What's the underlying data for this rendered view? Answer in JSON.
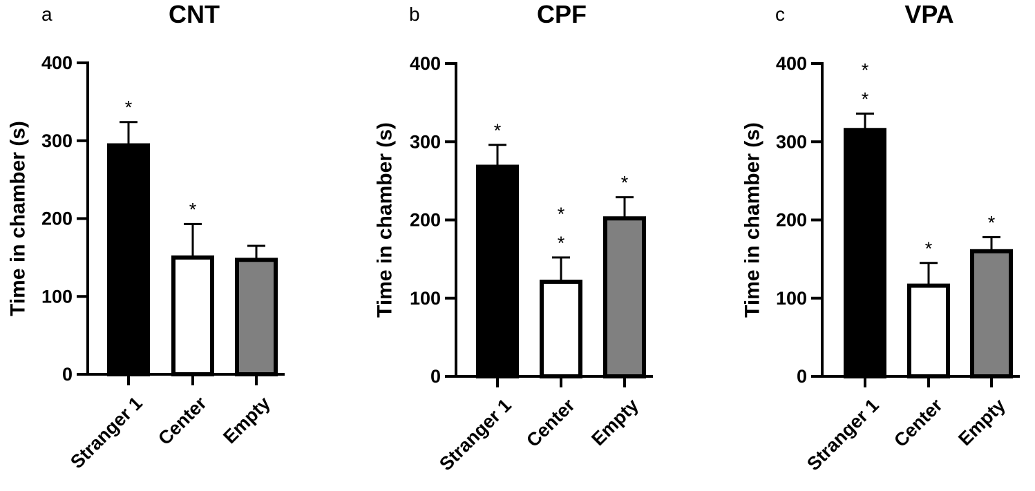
{
  "chart_data": [
    {
      "type": "bar",
      "panel_label": "a",
      "title": "CNT",
      "ylabel": "Time in chamber (s)",
      "xlabel": "",
      "categories": [
        "Stranger 1",
        "Center",
        "Empty"
      ],
      "values": [
        294,
        150,
        147
      ],
      "error": [
        30,
        43,
        18
      ],
      "bar_colors": [
        "#000000",
        "#ffffff",
        "#808080"
      ],
      "significance": [
        "*",
        "*",
        ""
      ],
      "ylim": [
        0,
        400
      ],
      "yticks": [
        "0",
        "100",
        "200",
        "300",
        "400"
      ],
      "grid": false
    },
    {
      "type": "bar",
      "panel_label": "b",
      "title": "CPF",
      "ylabel": "Time in chamber (s)",
      "xlabel": "",
      "categories": [
        "Stranger 1",
        "Center",
        "Empty"
      ],
      "values": [
        268,
        121,
        202
      ],
      "error": [
        28,
        31,
        27
      ],
      "bar_colors": [
        "#000000",
        "#ffffff",
        "#808080"
      ],
      "significance": [
        "*",
        "**",
        "*"
      ],
      "ylim": [
        0,
        400
      ],
      "yticks": [
        "0",
        "100",
        "200",
        "300",
        "400"
      ],
      "grid": false
    },
    {
      "type": "bar",
      "panel_label": "c",
      "title": "VPA",
      "ylabel": "Time in chamber (s)",
      "xlabel": "",
      "categories": [
        "Stranger 1",
        "Center",
        "Empty"
      ],
      "values": [
        315,
        116,
        160
      ],
      "error": [
        21,
        29,
        18
      ],
      "bar_colors": [
        "#000000",
        "#ffffff",
        "#808080"
      ],
      "significance": [
        "**",
        "*",
        "*"
      ],
      "ylim": [
        0,
        400
      ],
      "yticks": [
        "0",
        "100",
        "200",
        "300",
        "400"
      ],
      "grid": false
    }
  ]
}
